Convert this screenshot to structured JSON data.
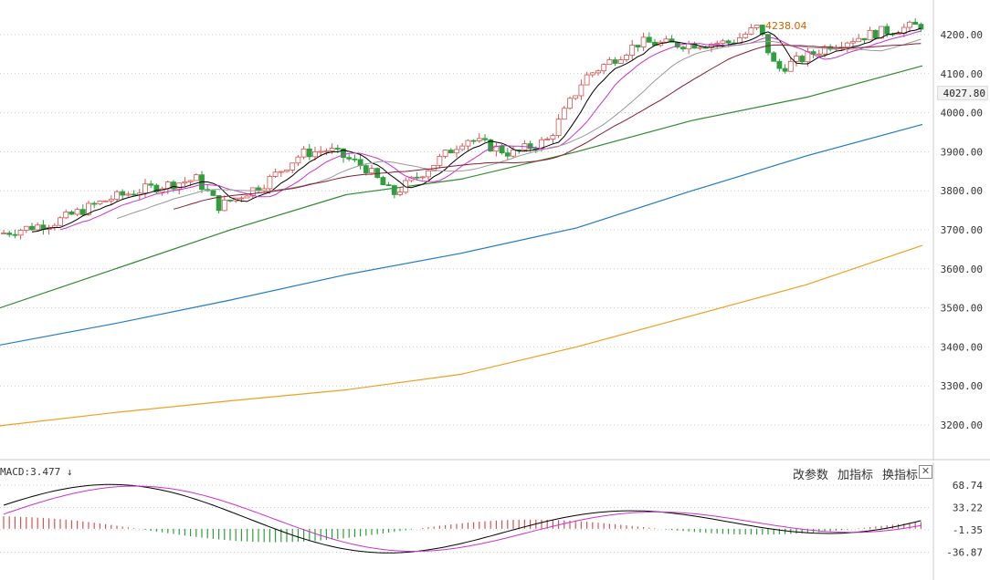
{
  "chart_data": [
    {
      "type": "candlestick",
      "y_ticks": [
        "4200.00",
        "4100.00",
        "4000.00",
        "3900.00",
        "3800.00",
        "3700.00",
        "3600.00",
        "3500.00",
        "3400.00",
        "3300.00",
        "3200.00"
      ],
      "ylim": [
        3170,
        4260
      ],
      "current_price_label": "4027.80",
      "peak_label": "4238.04",
      "colors": {
        "up": "#d9534f",
        "down": "#2e9e3e",
        "ma5": "#000000",
        "ma10": "#cc33cc",
        "ma20": "#999999",
        "ma30": "#8b1a2e",
        "ma60": "#2f8a2f",
        "ma120": "#1f7bc4",
        "ma250": "#f0a020"
      },
      "ma_series": [
        {
          "key": "ma120",
          "values": [
            3405,
            3460,
            3520,
            3585,
            3640,
            3705,
            3800,
            3890,
            3970
          ]
        },
        {
          "key": "ma250",
          "values": [
            3198,
            3232,
            3262,
            3290,
            3330,
            3400,
            3480,
            3560,
            3660
          ]
        },
        {
          "key": "ma60",
          "values": [
            3500,
            3600,
            3700,
            3790,
            3830,
            3900,
            3980,
            4040,
            4120
          ]
        }
      ]
    },
    {
      "type": "macd",
      "label": "MACD:3.477",
      "y_ticks": [
        "68.74",
        "33.22",
        "-1.35",
        "-36.87"
      ],
      "ylim": [
        -36.87,
        68.74
      ]
    }
  ],
  "toolbar": {
    "modify_params": "改参数",
    "add_indicator": "加指标",
    "switch_indicator": "换指标",
    "close": "✕"
  }
}
